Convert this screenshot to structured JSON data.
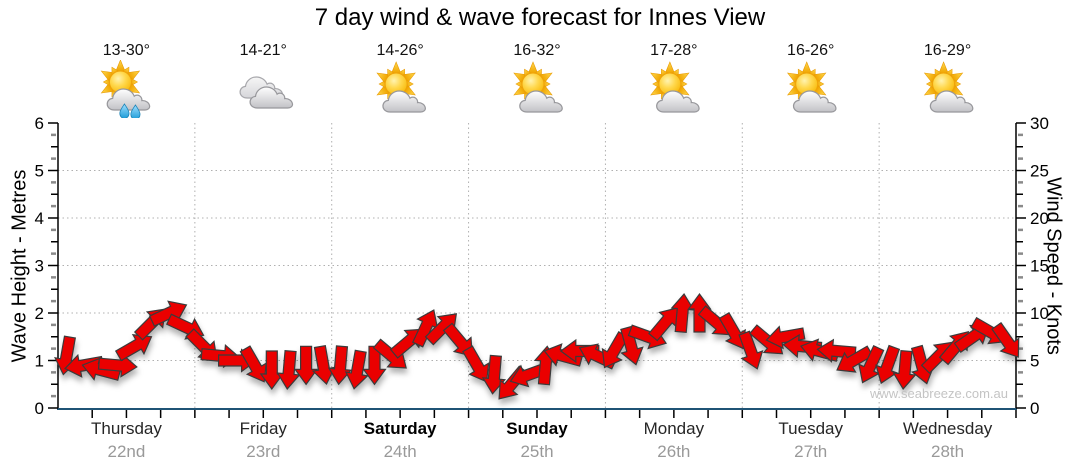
{
  "watermark": "www.seabreeze.com.au",
  "chart_data": {
    "type": "line",
    "style": "wind-direction-arrow-band",
    "title": "7 day wind & wave forecast for Innes View",
    "days": [
      {
        "name": "Thursday",
        "date": "22nd",
        "temp": "13-30°",
        "icon": "sun-cloud-rain",
        "weekend": false
      },
      {
        "name": "Friday",
        "date": "23rd",
        "temp": "14-21°",
        "icon": "clouds",
        "weekend": false
      },
      {
        "name": "Saturday",
        "date": "24th",
        "temp": "14-26°",
        "icon": "sun-cloud",
        "weekend": true
      },
      {
        "name": "Sunday",
        "date": "25th",
        "temp": "16-32°",
        "icon": "sun-cloud",
        "weekend": true
      },
      {
        "name": "Monday",
        "date": "26th",
        "temp": "17-28°",
        "icon": "sun-cloud",
        "weekend": false
      },
      {
        "name": "Tuesday",
        "date": "27th",
        "temp": "16-26°",
        "icon": "sun-cloud",
        "weekend": false
      },
      {
        "name": "Wednesday",
        "date": "28th",
        "temp": "16-29°",
        "icon": "sun-cloud",
        "weekend": false
      }
    ],
    "left_axis": {
      "label": "Wave Height - Metres",
      "min": 0,
      "max": 6,
      "major_step": 1,
      "minor_step": 0.25
    },
    "right_axis": {
      "label": "Wind Speed - Knots",
      "min": 0,
      "max": 30,
      "major_step": 5,
      "minor_step": 1.25
    },
    "x_axis": {
      "ticks_per_day": 4,
      "gridline_between_days": true
    },
    "wind_series": {
      "points_per_day": 8,
      "interval_hours": 3,
      "speeds_knots": [
        [
          5.5,
          4.5,
          4.0,
          4.5,
          6.5,
          9.0,
          10.0,
          8.5
        ],
        [
          6.5,
          5.5,
          5.0,
          4.5,
          4.0,
          4.0,
          4.5,
          4.5
        ],
        [
          4.5,
          4.0,
          4.5,
          5.5,
          7.0,
          8.5,
          8.5,
          7.0
        ],
        [
          4.5,
          3.5,
          2.5,
          3.5,
          4.5,
          5.5,
          6.0,
          5.5
        ],
        [
          6.0,
          6.5,
          7.5,
          9.0,
          10.0,
          10.0,
          9.0,
          8.0
        ],
        [
          6.0,
          7.0,
          7.5,
          6.5,
          6.0,
          6.0,
          5.0,
          4.5
        ],
        [
          4.5,
          4.0,
          4.5,
          5.5,
          6.5,
          7.5,
          8.0,
          7.0
        ]
      ],
      "directions_deg_cw_from_east": [
        [
          100,
          170,
          195,
          5,
          -30,
          -45,
          -25,
          25
        ],
        [
          45,
          5,
          0,
          60,
          90,
          95,
          90,
          80
        ],
        [
          95,
          100,
          90,
          40,
          -40,
          -65,
          -45,
          50
        ],
        [
          60,
          95,
          130,
          160,
          -85,
          195,
          180,
          205
        ],
        [
          120,
          75,
          20,
          -50,
          -85,
          -90,
          40,
          60
        ],
        [
          70,
          40,
          170,
          185,
          195,
          185,
          150,
          115
        ],
        [
          110,
          95,
          75,
          -45,
          -50,
          -35,
          30,
          55
        ]
      ]
    },
    "colors": {
      "arrow_fill": "#ea0000",
      "arrow_outline": "#3a3a3a",
      "x_axis_line": "#1f5375",
      "axis_line": "#000000",
      "gridline": "#b0b0b0",
      "day_text": "#262626",
      "date_text": "#999999",
      "watermark_text": "#c4c4c4"
    }
  }
}
